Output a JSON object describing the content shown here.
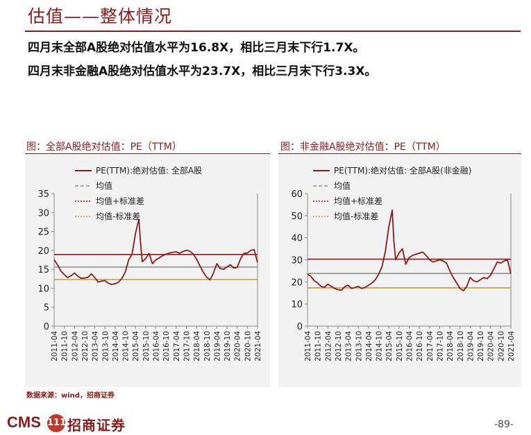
{
  "header": {
    "title": "估值——整体情况",
    "bullets": [
      "四月末全部A股绝对估值水平为16.8X，相比三月末下行1.7X。",
      "四月末非金融A股绝对估值水平为23.7X，相比三月末下行3.3X。"
    ]
  },
  "colors": {
    "accent": "#8b1a1a",
    "panel_bg": "#f2f2f2",
    "mean_line": "#8c8c8c",
    "lower_band": "#c89a32"
  },
  "chart_data": [
    {
      "type": "line",
      "title": "图：全部A股绝对估值：PE（TTM）",
      "xlabel": "",
      "ylabel": "",
      "ylim": [
        0,
        35
      ],
      "yticks": [
        0,
        5,
        10,
        15,
        20,
        25,
        30,
        35
      ],
      "x_tick_labels": [
        "2011-04",
        "2011-10",
        "2012-04",
        "2012-10",
        "2013-04",
        "2013-10",
        "2014-04",
        "2014-10",
        "2015-04",
        "2015-10",
        "2016-04",
        "2016-10",
        "2017-04",
        "2017-10",
        "2018-04",
        "2018-10",
        "2019-04",
        "2019-10",
        "2020-04",
        "2020-10",
        "2021-04"
      ],
      "legend": [
        "PE(TTM):绝对估值: 全部A股",
        "均值",
        "均值+标准差",
        "均值-标准差"
      ],
      "legend_position": "top-left",
      "reference_lines": {
        "mean": 15.6,
        "mean_plus_std": 18.9,
        "mean_minus_std": 12.3
      },
      "series": [
        {
          "name": "PE(TTM):绝对估值: 全部A股",
          "x": [
            "2011-04",
            "2011-06",
            "2011-08",
            "2011-10",
            "2011-12",
            "2012-02",
            "2012-04",
            "2012-06",
            "2012-08",
            "2012-10",
            "2012-12",
            "2013-02",
            "2013-04",
            "2013-06",
            "2013-08",
            "2013-10",
            "2013-12",
            "2014-02",
            "2014-04",
            "2014-06",
            "2014-08",
            "2014-10",
            "2014-12",
            "2015-02",
            "2015-04",
            "2015-06",
            "2015-07",
            "2015-08",
            "2015-10",
            "2015-12",
            "2016-02",
            "2016-04",
            "2016-06",
            "2016-08",
            "2016-10",
            "2016-12",
            "2017-02",
            "2017-04",
            "2017-06",
            "2017-08",
            "2017-10",
            "2017-12",
            "2018-02",
            "2018-04",
            "2018-06",
            "2018-08",
            "2018-10",
            "2018-12",
            "2019-02",
            "2019-04",
            "2019-06",
            "2019-08",
            "2019-10",
            "2019-12",
            "2020-02",
            "2020-04",
            "2020-06",
            "2020-08",
            "2020-10",
            "2020-12",
            "2021-02",
            "2021-04"
          ],
          "values": [
            17.5,
            16.2,
            14.5,
            13.6,
            12.8,
            13.3,
            14.0,
            13.2,
            12.6,
            12.7,
            12.9,
            13.8,
            12.8,
            11.6,
            11.9,
            12.0,
            11.3,
            11.0,
            11.2,
            11.6,
            12.6,
            14.3,
            17.5,
            19.0,
            24.5,
            28.2,
            22.0,
            17.0,
            17.8,
            19.2,
            16.5,
            17.5,
            18.0,
            18.6,
            19.0,
            19.3,
            19.5,
            19.6,
            19.2,
            19.7,
            20.0,
            19.8,
            19.1,
            17.7,
            15.9,
            14.2,
            12.9,
            12.2,
            14.0,
            16.5,
            15.2,
            15.0,
            15.6,
            16.2,
            15.3,
            15.5,
            17.8,
            19.2,
            19.3,
            20.0,
            20.2,
            16.8
          ]
        }
      ]
    },
    {
      "type": "line",
      "title": "图：非金融A股绝对估值：PE（TTM）",
      "xlabel": "",
      "ylabel": "",
      "ylim": [
        0,
        60
      ],
      "yticks": [
        0,
        10,
        20,
        30,
        40,
        50,
        60
      ],
      "x_tick_labels": [
        "2011-04",
        "2011-10",
        "2012-04",
        "2012-10",
        "2013-04",
        "2013-10",
        "2014-04",
        "2014-10",
        "2015-04",
        "2015-10",
        "2016-04",
        "2016-10",
        "2017-04",
        "2017-10",
        "2018-04",
        "2018-10",
        "2019-04",
        "2019-10",
        "2020-04",
        "2020-10",
        "2021-04"
      ],
      "legend": [
        "PE(TTM):绝对估值: 全部A股(非金融)",
        "均值",
        "均值+标准差",
        "均值-标准差"
      ],
      "legend_position": "top-left",
      "reference_lines": {
        "mean": 23.8,
        "mean_plus_std": 30.3,
        "mean_minus_std": 17.3
      },
      "series": [
        {
          "name": "PE(TTM):绝对估值: 全部A股(非金融)",
          "x": [
            "2011-04",
            "2011-06",
            "2011-08",
            "2011-10",
            "2011-12",
            "2012-02",
            "2012-04",
            "2012-06",
            "2012-08",
            "2012-10",
            "2012-12",
            "2013-02",
            "2013-04",
            "2013-06",
            "2013-08",
            "2013-10",
            "2013-12",
            "2014-02",
            "2014-04",
            "2014-06",
            "2014-08",
            "2014-10",
            "2014-12",
            "2015-02",
            "2015-04",
            "2015-06",
            "2015-07",
            "2015-08",
            "2015-10",
            "2015-12",
            "2016-02",
            "2016-04",
            "2016-06",
            "2016-08",
            "2016-10",
            "2016-12",
            "2017-02",
            "2017-04",
            "2017-06",
            "2017-08",
            "2017-10",
            "2017-12",
            "2018-02",
            "2018-04",
            "2018-06",
            "2018-08",
            "2018-10",
            "2018-12",
            "2019-02",
            "2019-04",
            "2019-06",
            "2019-08",
            "2019-10",
            "2019-12",
            "2020-02",
            "2020-04",
            "2020-06",
            "2020-08",
            "2020-10",
            "2020-12",
            "2021-02",
            "2021-04"
          ],
          "values": [
            23.5,
            22.5,
            20.5,
            19.5,
            18.0,
            17.5,
            19.0,
            18.0,
            17.0,
            16.5,
            16.2,
            17.8,
            18.5,
            17.0,
            17.5,
            18.0,
            17.0,
            17.5,
            18.5,
            19.5,
            21.0,
            23.5,
            27.0,
            34.0,
            45.0,
            52.5,
            38.0,
            30.0,
            33.0,
            35.0,
            28.0,
            31.0,
            32.0,
            32.5,
            33.0,
            33.5,
            32.0,
            30.0,
            29.0,
            29.5,
            30.0,
            29.5,
            28.5,
            25.0,
            22.0,
            19.5,
            17.0,
            16.0,
            18.0,
            22.0,
            20.5,
            20.0,
            21.0,
            22.0,
            21.5,
            23.0,
            26.0,
            29.0,
            28.5,
            29.5,
            30.0,
            23.7
          ]
        }
      ]
    }
  ],
  "source": "数据来源：wind，招商证券",
  "footer": {
    "logo_latin": "CMS",
    "logo_mark": "111",
    "logo_cn": "招商证券",
    "page": "-89-"
  }
}
